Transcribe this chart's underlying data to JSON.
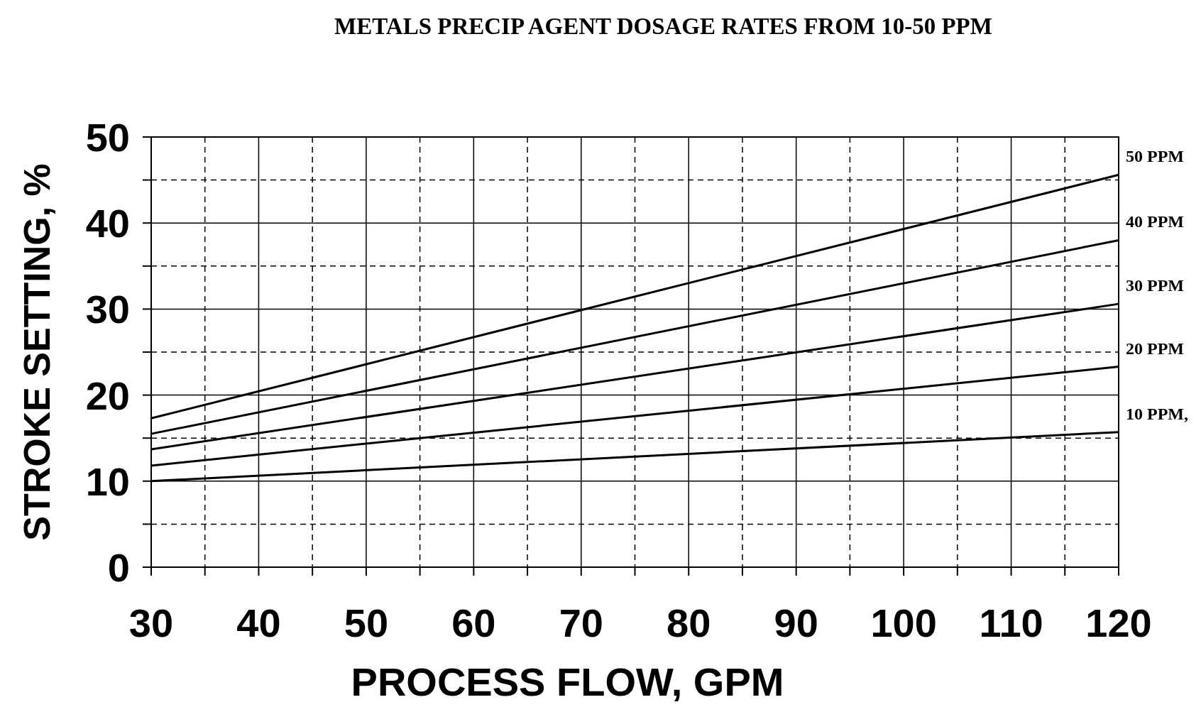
{
  "chart_data": {
    "type": "line",
    "title": "METALS PRECIP AGENT DOSAGE RATES FROM 10-50 PPM",
    "xlabel": "PROCESS FLOW, GPM",
    "ylabel": "STROKE SETTING, %",
    "x": [
      30,
      120
    ],
    "series": [
      {
        "name": "50 PPM",
        "color": "#000000",
        "values": [
          17.3,
          45.6
        ]
      },
      {
        "name": "40 PPM",
        "color": "#000000",
        "values": [
          15.5,
          38.0
        ]
      },
      {
        "name": "30 PPM",
        "color": "#000000",
        "values": [
          13.7,
          30.6
        ]
      },
      {
        "name": "20 PPM",
        "color": "#000000",
        "values": [
          11.8,
          23.3
        ]
      },
      {
        "name": "10 PPM,",
        "color": "#000000",
        "values": [
          10.0,
          15.7
        ]
      }
    ],
    "xlim": [
      30,
      120
    ],
    "ylim": [
      0,
      50
    ],
    "xticks": [
      30,
      {
        "value": 35,
        "label": null
      },
      40,
      {
        "value": 45,
        "label": null
      },
      50,
      {
        "value": 55,
        "label": null
      },
      60,
      {
        "value": 65,
        "label": null
      },
      70,
      {
        "value": 75,
        "label": null
      },
      80,
      {
        "value": 85,
        "label": null
      },
      90,
      {
        "value": 95,
        "label": null
      },
      100,
      {
        "value": 105,
        "label": null
      },
      110,
      {
        "value": 115,
        "label": null
      },
      120
    ],
    "yticks": [
      0,
      {
        "value": 5,
        "label": null
      },
      10,
      {
        "value": 15,
        "label": null
      },
      20,
      {
        "value": 25,
        "label": null
      },
      30,
      {
        "value": 35,
        "label": null
      },
      40,
      {
        "value": 45,
        "label": null
      },
      50
    ],
    "grid": true,
    "line_style": "solid",
    "marker": "none"
  }
}
